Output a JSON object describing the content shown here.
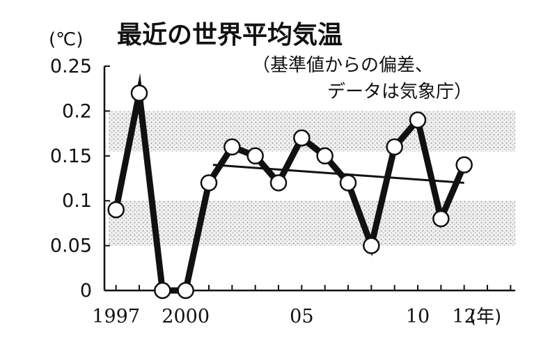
{
  "chart_data": {
    "type": "line",
    "title": "最近の世界平均気温",
    "subtitle_lines": [
      "（基準値からの偏差、",
      "データは気象庁）"
    ],
    "y_unit_label": "(℃)",
    "x_unit_label": "(年)",
    "ylim": [
      0,
      0.25
    ],
    "y_ticks": [
      {
        "value": 0,
        "label": "0"
      },
      {
        "value": 0.05,
        "label": "0.05"
      },
      {
        "value": 0.1,
        "label": "0.1"
      },
      {
        "value": 0.15,
        "label": "0.15"
      },
      {
        "value": 0.2,
        "label": "0.2"
      },
      {
        "value": 0.25,
        "label": "0.25"
      }
    ],
    "xlim": [
      1996.5,
      2014.2
    ],
    "x_ticks": [
      {
        "value": 1997,
        "label": "1997"
      },
      {
        "value": 2000,
        "label": "2000"
      },
      {
        "value": 2005,
        "label": "05"
      },
      {
        "value": 2010,
        "label": "10"
      },
      {
        "value": 2012,
        "label": "12"
      }
    ],
    "shaded_bands": [
      [
        0.05,
        0.1
      ],
      [
        0.155,
        0.2
      ]
    ],
    "series": [
      {
        "x": [
          1997,
          1998,
          1999,
          2000,
          2001,
          2002,
          2003,
          2004,
          2005,
          2006,
          2007,
          2008,
          2009,
          2010,
          2011,
          2012
        ],
        "values": [
          0.09,
          0.22,
          0.0,
          0.0,
          0.12,
          0.16,
          0.15,
          0.12,
          0.17,
          0.15,
          0.12,
          0.05,
          0.16,
          0.19,
          0.08,
          0.14
        ]
      }
    ],
    "trend_line": {
      "x": [
        2001,
        2012
      ],
      "values": [
        0.14,
        0.12
      ]
    },
    "colors": {
      "line": "#111111",
      "marker_fill": "#ffffff",
      "band": "#d9d9d9",
      "axis": "#111111"
    }
  }
}
